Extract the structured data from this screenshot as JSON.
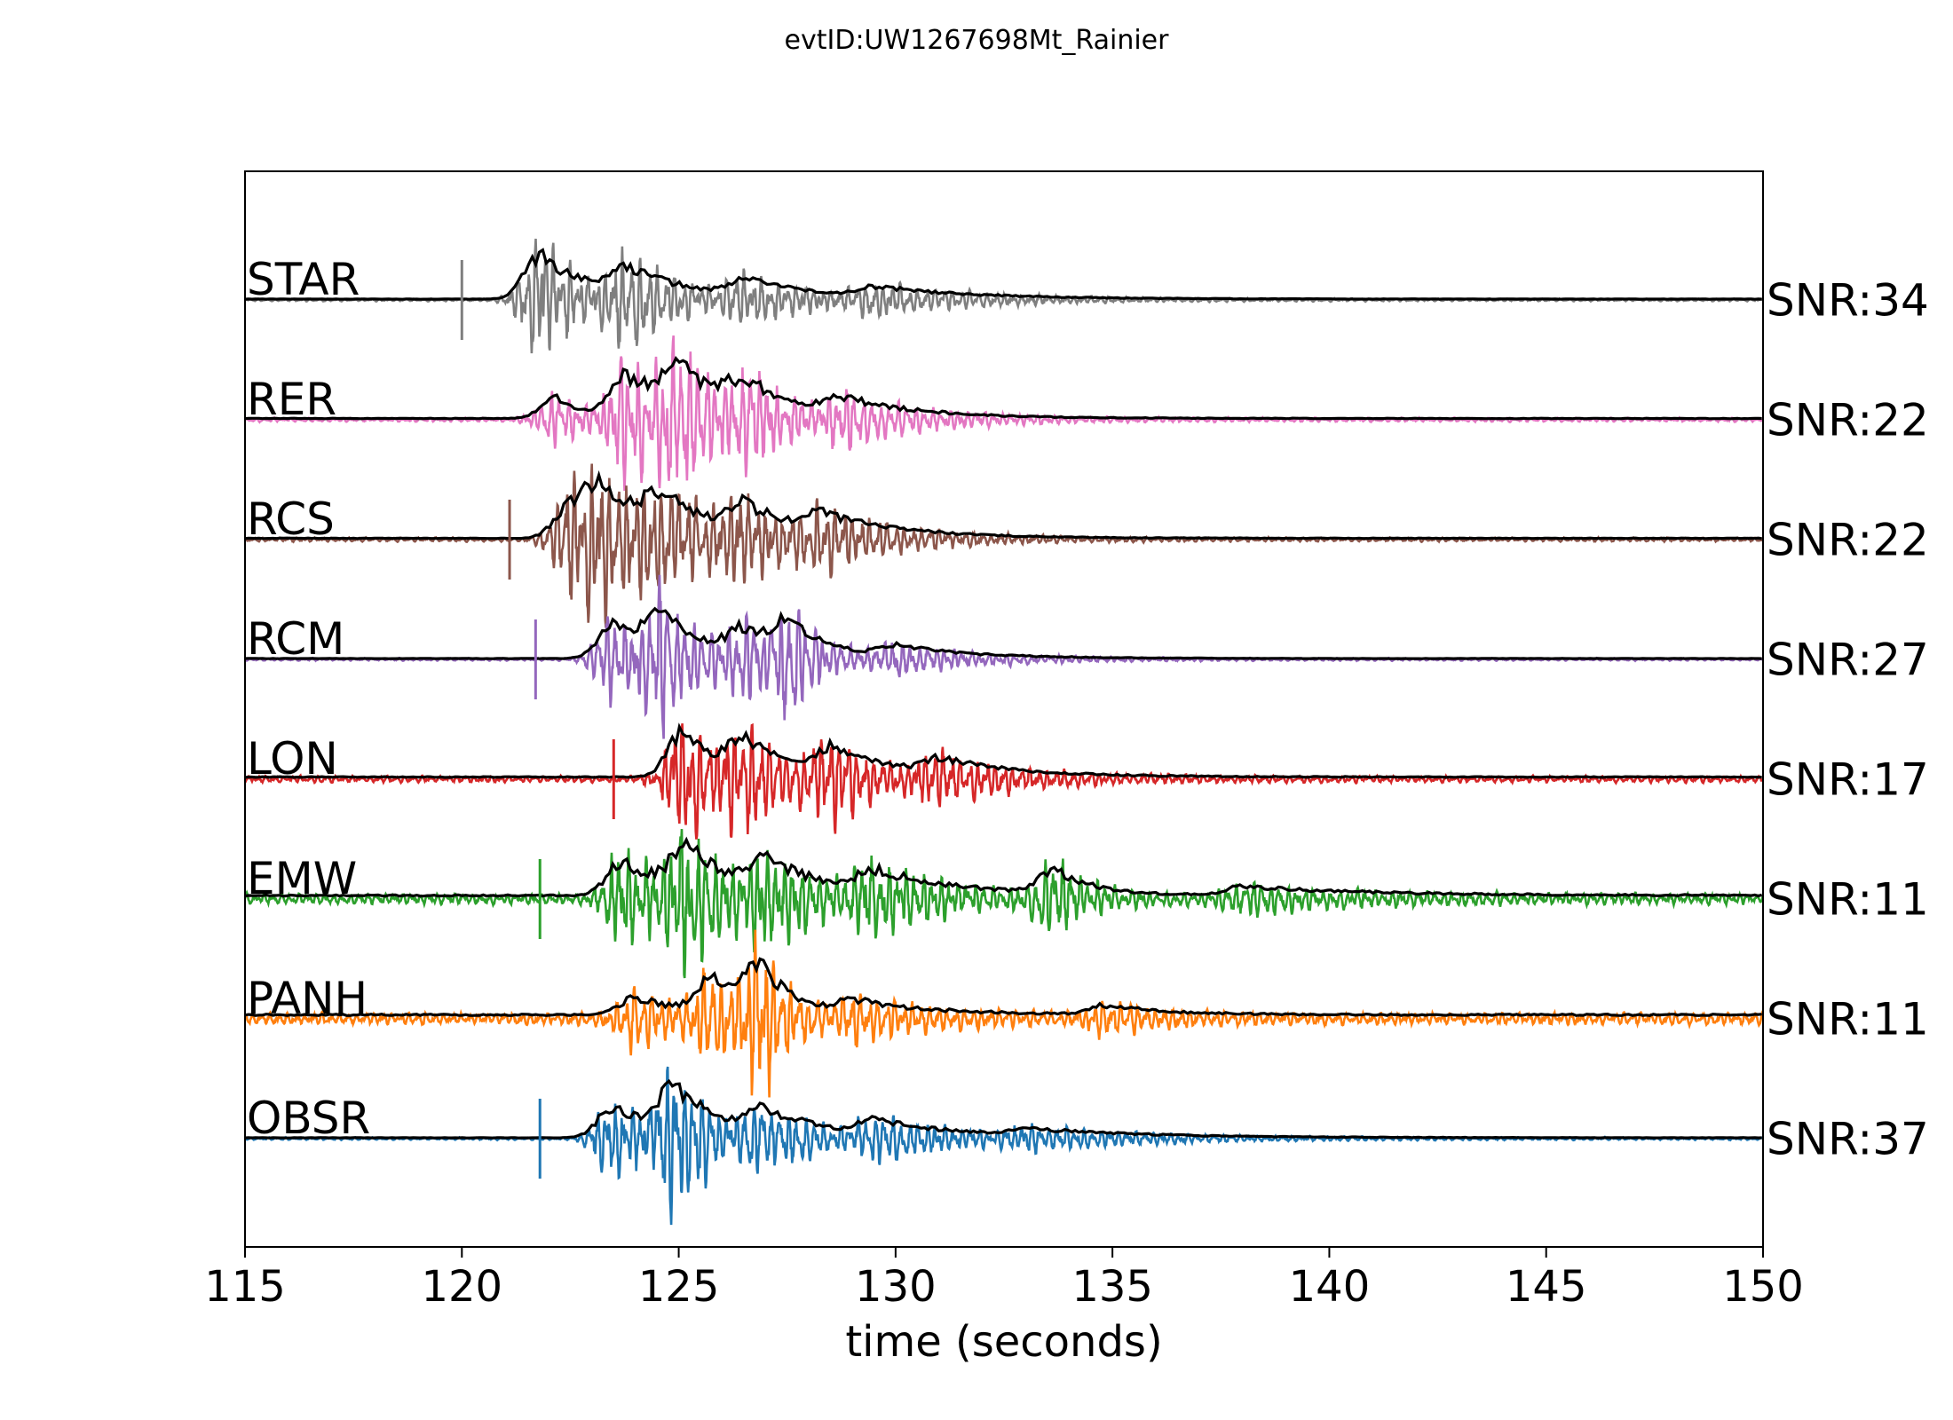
{
  "chart_data": {
    "type": "line",
    "title": "evtID:UW1267698Mt_Rainier",
    "xlabel": "time (seconds)",
    "ylabel": "",
    "xlim": [
      115,
      150
    ],
    "xticks": [
      115,
      120,
      125,
      130,
      135,
      140,
      145,
      150
    ],
    "grid": false,
    "legend": "none",
    "envelope_color": "#000000",
    "series": [
      {
        "name": "STAR",
        "snr_label": "SNR:34",
        "color": "#7f7f7f",
        "pick_time": 120.0,
        "noise_level": 0.02,
        "bursts": [
          [
            121.8,
            1.0,
            1.2
          ],
          [
            123.8,
            0.6,
            1.5
          ],
          [
            126.5,
            0.35,
            2.0
          ],
          [
            129.5,
            0.2,
            2.5
          ]
        ]
      },
      {
        "name": "RER",
        "snr_label": "SNR:22",
        "color": "#e377c2",
        "pick_time": null,
        "noise_level": 0.03,
        "bursts": [
          [
            122.2,
            0.45,
            0.8
          ],
          [
            123.8,
            0.95,
            1.3
          ],
          [
            125.0,
            0.9,
            1.2
          ],
          [
            126.5,
            0.55,
            1.6
          ],
          [
            128.8,
            0.3,
            2.0
          ]
        ]
      },
      {
        "name": "RCS",
        "snr_label": "SNR:22",
        "color": "#8c564b",
        "pick_time": 121.1,
        "noise_level": 0.03,
        "bursts": [
          [
            122.5,
            0.75,
            1.0
          ],
          [
            123.2,
            1.0,
            1.2
          ],
          [
            124.6,
            0.7,
            1.4
          ],
          [
            126.5,
            0.55,
            1.6
          ],
          [
            128.3,
            0.35,
            2.0
          ]
        ]
      },
      {
        "name": "RCM",
        "snr_label": "SNR:27",
        "color": "#9467bd",
        "pick_time": 121.7,
        "noise_level": 0.02,
        "bursts": [
          [
            123.5,
            0.75,
            1.0
          ],
          [
            124.6,
            1.0,
            0.9
          ],
          [
            126.5,
            0.55,
            1.2
          ],
          [
            127.6,
            0.65,
            0.8
          ],
          [
            130.0,
            0.25,
            2.0
          ]
        ]
      },
      {
        "name": "LON",
        "snr_label": "SNR:17",
        "color": "#d62728",
        "pick_time": 123.5,
        "noise_level": 0.05,
        "bursts": [
          [
            125.1,
            1.0,
            0.9
          ],
          [
            126.5,
            0.7,
            1.4
          ],
          [
            128.5,
            0.5,
            1.6
          ],
          [
            131.0,
            0.3,
            2.0
          ]
        ]
      },
      {
        "name": "EMW",
        "snr_label": "SNR:11",
        "color": "#2ca02c",
        "pick_time": 121.8,
        "noise_level": 0.08,
        "bursts": [
          [
            123.7,
            0.75,
            1.3
          ],
          [
            125.2,
            0.95,
            1.0
          ],
          [
            127.0,
            0.65,
            1.6
          ],
          [
            129.5,
            0.45,
            2.0
          ],
          [
            133.7,
            0.55,
            0.8
          ],
          [
            138.0,
            0.2,
            3.0
          ]
        ]
      },
      {
        "name": "PANH",
        "snr_label": "SNR:11",
        "color": "#ff7f0e",
        "pick_time": null,
        "noise_level": 0.09,
        "bursts": [
          [
            124.0,
            0.4,
            1.2
          ],
          [
            125.8,
            0.75,
            0.8
          ],
          [
            126.9,
            1.0,
            0.7
          ],
          [
            129.0,
            0.3,
            2.0
          ],
          [
            134.8,
            0.2,
            1.5
          ]
        ]
      },
      {
        "name": "OBSR",
        "snr_label": "SNR:37",
        "color": "#1f77b4",
        "pick_time": 121.8,
        "noise_level": 0.02,
        "bursts": [
          [
            123.5,
            0.7,
            1.2
          ],
          [
            124.9,
            1.0,
            1.1
          ],
          [
            127.0,
            0.5,
            1.5
          ],
          [
            129.5,
            0.3,
            2.2
          ],
          [
            133.0,
            0.15,
            3.0
          ]
        ]
      }
    ]
  }
}
